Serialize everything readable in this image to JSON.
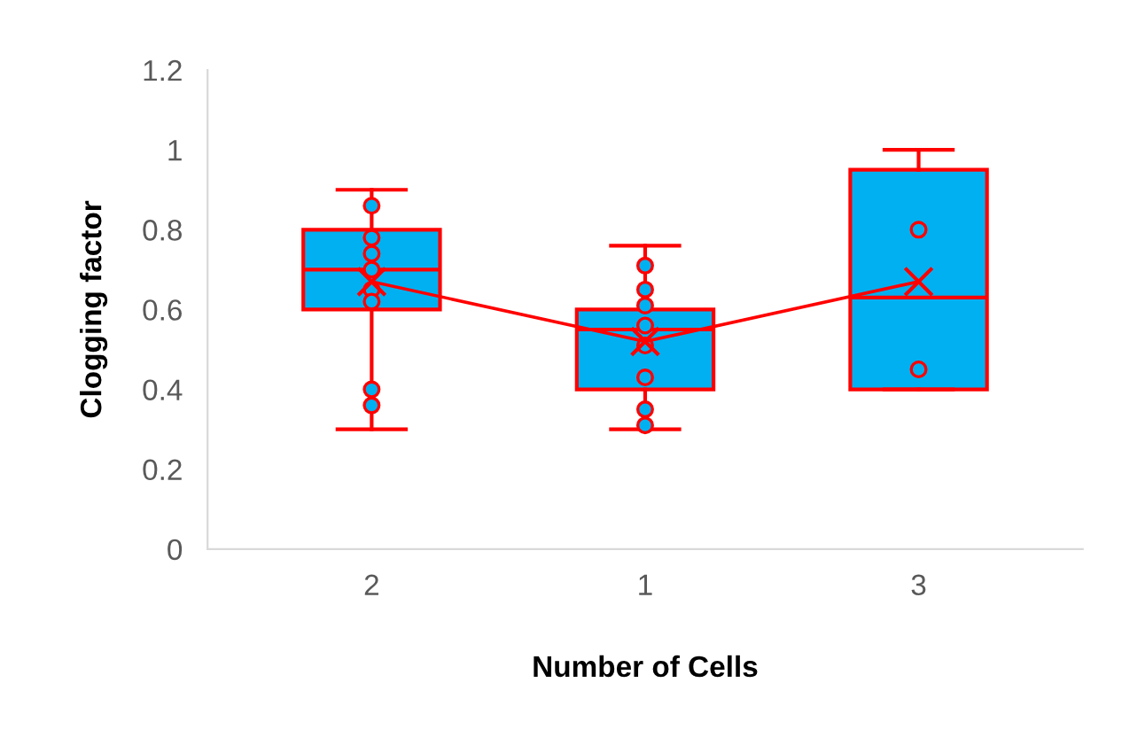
{
  "chart_data": {
    "type": "box",
    "xlabel": "Number of Cells",
    "ylabel": "Clogging factor",
    "categories": [
      "2",
      "1",
      "3"
    ],
    "ylim": [
      0,
      1.2
    ],
    "yticks": [
      0,
      0.2,
      0.4,
      0.6,
      0.8,
      1,
      1.2
    ],
    "grid": false,
    "legend": false,
    "series": [
      {
        "type": "box",
        "color": "#ff0000",
        "colors": [
          "#00b0f0",
          "#00b0f0",
          "#00b0f0"
        ],
        "boxes": [
          {
            "low": 0.3,
            "q1": 0.6,
            "median": 0.7,
            "q3": 0.8,
            "high": 0.9
          },
          {
            "low": 0.3,
            "q1": 0.4,
            "median": 0.55,
            "q3": 0.6,
            "high": 0.76
          },
          {
            "low": 0.4,
            "q1": 0.4,
            "median": 0.63,
            "q3": 0.95,
            "high": 1.0
          }
        ]
      },
      {
        "type": "line",
        "color": "#ff0000",
        "marker": "cross",
        "values": [
          0.67,
          0.52,
          0.67
        ]
      },
      {
        "type": "scatter",
        "color": "#ff0000",
        "marker": "circle",
        "x": [
          "2",
          "2",
          "2",
          "2",
          "2",
          "2",
          "2",
          "2"
        ],
        "values": [
          0.86,
          0.78,
          0.74,
          0.7,
          0.65,
          0.62,
          0.4,
          0.36
        ]
      },
      {
        "type": "scatter",
        "color": "#ff0000",
        "marker": "circle",
        "x": [
          "1",
          "1",
          "1",
          "1",
          "1",
          "1",
          "1",
          "1"
        ],
        "values": [
          0.71,
          0.65,
          0.61,
          0.56,
          0.51,
          0.43,
          0.35,
          0.31
        ]
      },
      {
        "type": "scatter",
        "color": "#ff0000",
        "marker": "circle",
        "x": [
          "3",
          "3"
        ],
        "values": [
          0.8,
          0.45
        ]
      }
    ]
  }
}
